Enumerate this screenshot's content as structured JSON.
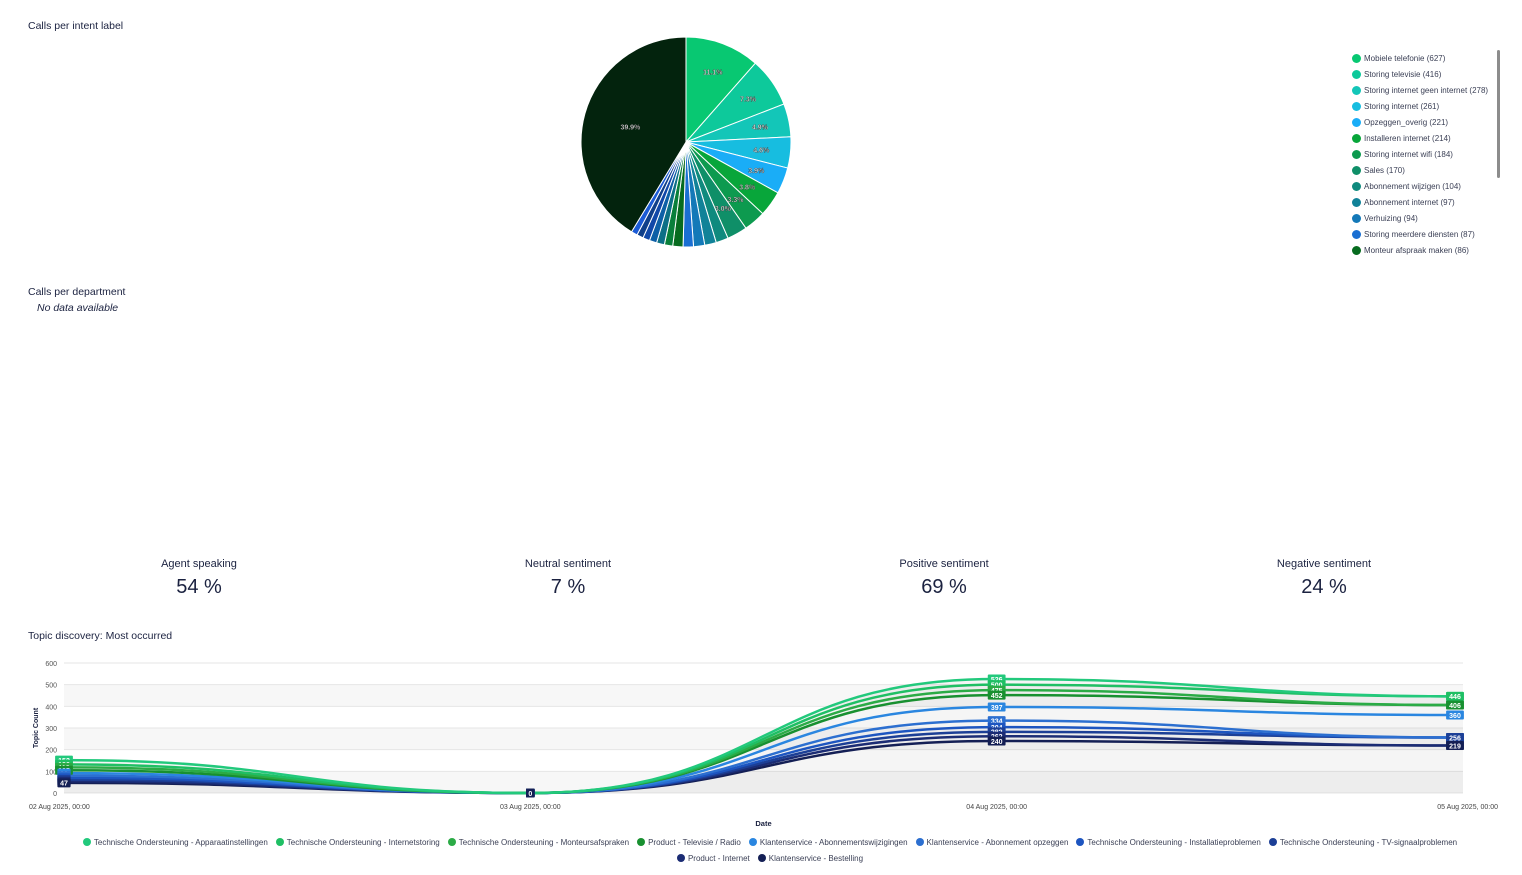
{
  "pie_section": {
    "title": "Calls per intent label",
    "legend": [
      {
        "label": "Mobiele telefonie (627)",
        "color": "#08c872"
      },
      {
        "label": "Storing televisie (416)",
        "color": "#0dc99b"
      },
      {
        "label": "Storing internet geen internet (278)",
        "color": "#13c6b8"
      },
      {
        "label": "Storing internet (261)",
        "color": "#17bde0"
      },
      {
        "label": "Opzeggen_overig (221)",
        "color": "#1aadf7"
      },
      {
        "label": "Installeren internet (214)",
        "color": "#08a63a"
      },
      {
        "label": "Storing internet wifi (184)",
        "color": "#0d9a4f"
      },
      {
        "label": "Sales (170)",
        "color": "#0f8f68"
      },
      {
        "label": "Abonnement wijzigen (104)",
        "color": "#0f8a7e"
      },
      {
        "label": "Abonnement internet (97)",
        "color": "#118298"
      },
      {
        "label": "Verhuizing (94)",
        "color": "#1479b8"
      },
      {
        "label": "Storing meerdere diensten (87)",
        "color": "#1a6fd2"
      },
      {
        "label": "Monteur afspraak maken (86)",
        "color": "#076b1f"
      }
    ]
  },
  "department_section": {
    "title": "Calls per department",
    "empty_text": "No data available"
  },
  "kpis": [
    {
      "label": "Agent speaking",
      "value": "54 %"
    },
    {
      "label": "Neutral sentiment",
      "value": "7 %"
    },
    {
      "label": "Positive sentiment",
      "value": "69 %"
    },
    {
      "label": "Negative sentiment",
      "value": "24 %"
    }
  ],
  "topic_section": {
    "title": "Topic discovery: Most occurred"
  },
  "chart_data": [
    {
      "type": "pie",
      "title": "Calls per intent label",
      "slices": [
        {
          "name": "Mobiele telefonie",
          "value": 627,
          "label": "11.1%",
          "color": "#08c872"
        },
        {
          "name": "Storing televisie",
          "value": 416,
          "label": "7.3%",
          "color": "#0dc99b"
        },
        {
          "name": "Storing internet geen internet",
          "value": 278,
          "label": "4.9%",
          "color": "#13c6b8"
        },
        {
          "name": "Storing internet",
          "value": 261,
          "label": "4.6%",
          "color": "#17bde0"
        },
        {
          "name": "Opzeggen_overig",
          "value": 221,
          "label": "3.9%",
          "color": "#1aadf7"
        },
        {
          "name": "Installeren internet",
          "value": 214,
          "label": "3.8%",
          "color": "#08a63a"
        },
        {
          "name": "Storing internet wifi",
          "value": 184,
          "label": "3.3%",
          "color": "#0d9a4f"
        },
        {
          "name": "Sales",
          "value": 170,
          "label": "3.0%",
          "color": "#0f8f68"
        },
        {
          "name": "Abonnement wijzigen",
          "value": 104,
          "label": "",
          "color": "#0f8a7e"
        },
        {
          "name": "Abonnement internet",
          "value": 97,
          "label": "",
          "color": "#118298"
        },
        {
          "name": "Verhuizing",
          "value": 94,
          "label": "",
          "color": "#1479b8"
        },
        {
          "name": "Storing meerdere diensten",
          "value": 87,
          "label": "",
          "color": "#1a6fd2"
        },
        {
          "name": "Monteur afspraak maken",
          "value": 86,
          "label": "",
          "color": "#076b1f"
        },
        {
          "value": 70,
          "label": "",
          "color": "#097f3a"
        },
        {
          "value": 66,
          "label": "",
          "color": "#0c6f86"
        },
        {
          "value": 62,
          "label": "",
          "color": "#0d5fa6"
        },
        {
          "value": 58,
          "label": "",
          "color": "#1048a8"
        },
        {
          "value": 55,
          "label": "",
          "color": "#0f3f8a"
        },
        {
          "value": 52,
          "label": "",
          "color": "#1b5bd6"
        },
        {
          "value": 2255,
          "label": "39.9%",
          "color": "#03230d"
        }
      ]
    },
    {
      "type": "line",
      "title": "Topic discovery: Most occurred",
      "xlabel": "Date",
      "ylabel": "Topic Count",
      "x": [
        "02 Aug 2025, 00:00",
        "03 Aug 2025, 00:00",
        "04 Aug 2025, 00:00",
        "05 Aug 2025, 00:00"
      ],
      "ylim": [
        0,
        600
      ],
      "yticks": [
        0,
        100,
        200,
        300,
        400,
        500,
        600
      ],
      "series": [
        {
          "name": "Technische Ondersteuning - Apparaatinstellingen",
          "color": "#22c97c",
          "values": [
            152,
            0,
            526,
            446
          ]
        },
        {
          "name": "Technische Ondersteuning - Internetstoring",
          "color": "#1fbf64",
          "values": [
            132,
            0,
            500,
            446
          ]
        },
        {
          "name": "Technische Ondersteuning - Monteursafspraken",
          "color": "#2bab46",
          "values": [
            118,
            0,
            475,
            406
          ]
        },
        {
          "name": "Product - Televisie / Radio",
          "color": "#189030",
          "values": [
            105,
            0,
            452,
            406
          ]
        },
        {
          "name": "Klantenservice - Abonnementswijzigingen",
          "color": "#2a86e0",
          "values": [
            92,
            0,
            397,
            360
          ]
        },
        {
          "name": "Klantenservice - Abonnement opzeggen",
          "color": "#2c6fd0",
          "values": [
            80,
            0,
            334,
            256
          ]
        },
        {
          "name": "Technische Ondersteuning - Installatieproblemen",
          "color": "#1d55c0",
          "values": [
            70,
            0,
            304,
            256
          ]
        },
        {
          "name": "Technische Ondersteuning - TV-signaalproblemen",
          "color": "#1c3f96",
          "values": [
            62,
            0,
            282,
            256
          ]
        },
        {
          "name": "Product - Internet",
          "color": "#1b2c74",
          "values": [
            54,
            0,
            262,
            219
          ]
        },
        {
          "name": "Klantenservice - Bestelling",
          "color": "#141f55",
          "values": [
            47,
            0,
            240,
            219
          ]
        }
      ]
    }
  ]
}
